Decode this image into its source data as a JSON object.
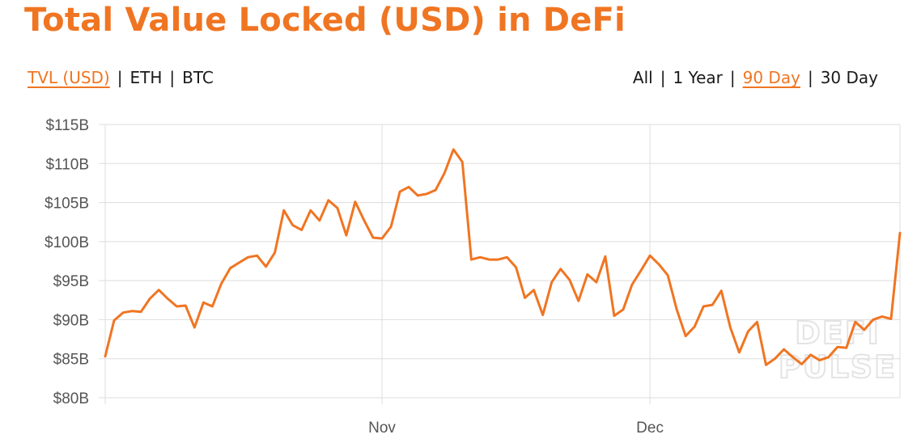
{
  "header": {
    "title": "Total Value Locked (USD) in DeFi"
  },
  "metric_tabs": [
    {
      "label": "TVL (USD)",
      "active": true
    },
    {
      "label": "ETH",
      "active": false
    },
    {
      "label": "BTC",
      "active": false
    }
  ],
  "range_tabs": [
    {
      "label": "All",
      "active": false
    },
    {
      "label": "1 Year",
      "active": false
    },
    {
      "label": "90 Day",
      "active": true
    },
    {
      "label": "30 Day",
      "active": false
    }
  ],
  "watermark": [
    "DEFI",
    "PULSE"
  ],
  "colors": {
    "accent": "#f07522",
    "grid": "#dddddd",
    "axis_text": "#555555",
    "watermark": "#e4e4e4"
  },
  "chart_data": {
    "type": "line",
    "title": "Total Value Locked (USD) in DeFi",
    "xlabel": "",
    "ylabel": "",
    "ylim": [
      80,
      115
    ],
    "y_ticks": [
      80,
      85,
      90,
      95,
      100,
      105,
      110,
      115
    ],
    "y_tick_labels": [
      "$80B",
      "$85B",
      "$90B",
      "$95B",
      "$100B",
      "$105B",
      "$110B",
      "$115B"
    ],
    "x_tick_labels": [
      {
        "label": "Nov",
        "index": 31
      },
      {
        "label": "Dec",
        "index": 61
      }
    ],
    "grid": true,
    "legend": "none",
    "series": [
      {
        "values": [
          85.3,
          89.9,
          90.9,
          91.1,
          91.0,
          92.7,
          93.8,
          92.7,
          91.7,
          91.8,
          89.0,
          92.2,
          91.7,
          94.6,
          96.6,
          97.3,
          98.0,
          98.2,
          96.8,
          98.6,
          104.0,
          102.1,
          101.5,
          104.0,
          102.7,
          105.3,
          104.3,
          100.8,
          105.1,
          102.7,
          100.5,
          100.4,
          101.9,
          106.4,
          107.0,
          105.9,
          106.1,
          106.6,
          108.8,
          111.8,
          110.2,
          97.7,
          98.0,
          97.7,
          97.7,
          98.0,
          96.7,
          92.8,
          93.8,
          90.6,
          94.8,
          96.5,
          95.1,
          92.4,
          95.8,
          94.8,
          98.1,
          90.5,
          91.3,
          94.5,
          96.3,
          98.2,
          97.1,
          95.7,
          91.3,
          87.9,
          89.1,
          91.7,
          91.9,
          93.7,
          89.0,
          85.8,
          88.5,
          89.7,
          84.2,
          85.0,
          86.2,
          85.2,
          84.3,
          85.5,
          84.8,
          85.2,
          86.5,
          86.4,
          89.7,
          88.7,
          90.0,
          90.4,
          90.1,
          101.1
        ]
      }
    ]
  }
}
